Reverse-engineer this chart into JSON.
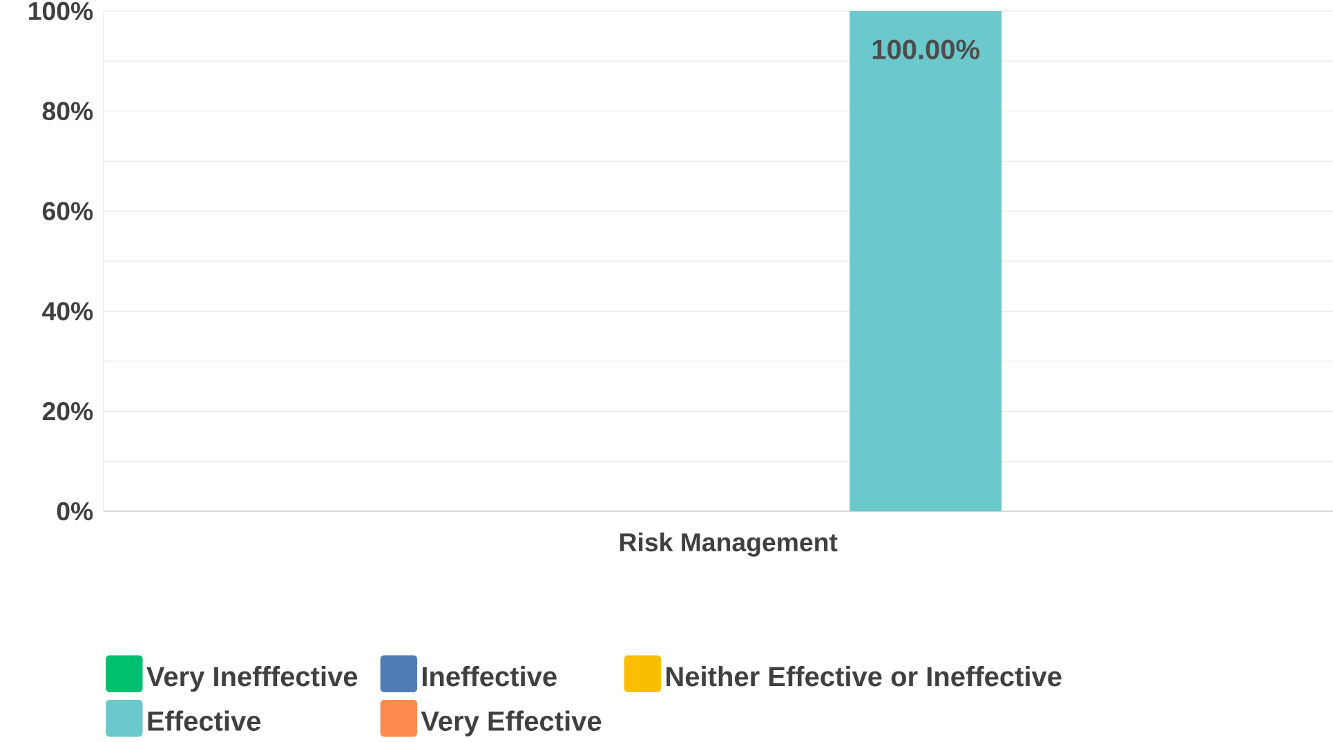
{
  "chart_data": {
    "type": "bar",
    "categories": [
      "Risk Management"
    ],
    "series": [
      {
        "name": "Very Inefffective",
        "color": "#00bf6f",
        "values": [
          0
        ],
        "value_labels": [
          null
        ]
      },
      {
        "name": "Ineffective",
        "color": "#507cb6",
        "values": [
          0
        ],
        "value_labels": [
          null
        ]
      },
      {
        "name": "Neither Effective or Ineffective",
        "color": "#f9be00",
        "values": [
          0
        ],
        "value_labels": [
          null
        ]
      },
      {
        "name": "Effective",
        "color": "#6bc8cd",
        "values": [
          100
        ],
        "value_labels": [
          "100.00%"
        ]
      },
      {
        "name": "Very Effective",
        "color": "#ff8b4f",
        "values": [
          0
        ],
        "value_labels": [
          null
        ]
      }
    ],
    "ylim": [
      0,
      100
    ],
    "yticks": [
      {
        "value": 0,
        "label": "0%"
      },
      {
        "value": 10,
        "label": null
      },
      {
        "value": 20,
        "label": "20%"
      },
      {
        "value": 30,
        "label": null
      },
      {
        "value": 40,
        "label": "40%"
      },
      {
        "value": 50,
        "label": null
      },
      {
        "value": 60,
        "label": "60%"
      },
      {
        "value": 70,
        "label": null
      },
      {
        "value": 80,
        "label": "80%"
      },
      {
        "value": 90,
        "label": null
      },
      {
        "value": 100,
        "label": "100%"
      }
    ],
    "grid": "y",
    "legend": "bottom"
  }
}
